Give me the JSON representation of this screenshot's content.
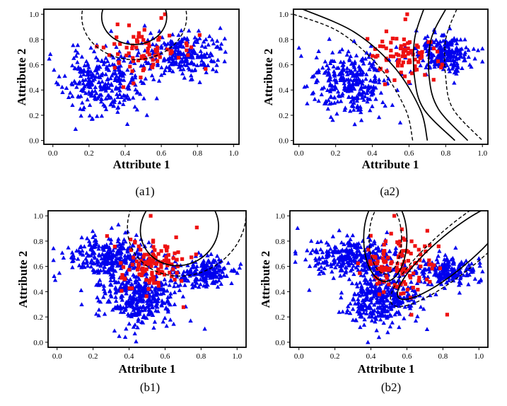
{
  "chart_data": [
    {
      "type": "scatter",
      "panel": "a1",
      "caption": "(a1)",
      "xlabel": "Attribute 1",
      "ylabel": "Attribute 2",
      "xlim": [
        -0.05,
        1.03
      ],
      "ylim": [
        -0.03,
        1.04
      ],
      "xticks": [
        "0.0",
        "0.2",
        "0.4",
        "0.6",
        "0.8",
        "1.0"
      ],
      "yticks": [
        "0.0",
        "0.2",
        "0.4",
        "0.6",
        "0.8",
        "1.0"
      ],
      "xtick_values": [
        0,
        0.2,
        0.4,
        0.6,
        0.8,
        1.0
      ],
      "ytick_values": [
        0,
        0.2,
        0.4,
        0.6,
        0.8,
        1.0
      ],
      "series": [
        {
          "name": "class-blue-triangles",
          "marker": "triangle",
          "color": "#0000ee",
          "clusters": [
            {
              "cx": 0.28,
              "cy": 0.46,
              "sx": 0.11,
              "sy": 0.13,
              "n": 300,
              "seed": 11
            },
            {
              "cx": 0.72,
              "cy": 0.68,
              "sx": 0.1,
              "sy": 0.08,
              "n": 230,
              "seed": 12
            }
          ]
        },
        {
          "name": "class-red-squares",
          "marker": "square",
          "color": "#ee1111",
          "clusters": [
            {
              "cx": 0.46,
              "cy": 0.7,
              "sx": 0.15,
              "sy": 0.1,
              "n": 75,
              "seed": 13
            }
          ],
          "points": [
            [
              0.62,
              1.0
            ],
            [
              0.6,
              0.97
            ]
          ]
        }
      ],
      "boundaries": [
        {
          "kind": "ellipse",
          "style": "solid",
          "cx": 0.45,
          "cy": 0.98,
          "rx": 0.18,
          "ry": 0.22
        },
        {
          "kind": "ellipse",
          "style": "dashed",
          "cx": 0.45,
          "cy": 0.98,
          "rx": 0.29,
          "ry": 0.34
        }
      ]
    },
    {
      "type": "scatter",
      "panel": "a2",
      "caption": "(a2)",
      "xlabel": "Attribute 1",
      "ylabel": "Attribute 2",
      "xlim": [
        -0.03,
        1.03
      ],
      "ylim": [
        -0.03,
        1.04
      ],
      "xticks": [
        "0.0",
        "0.2",
        "0.4",
        "0.6",
        "0.8",
        "1.0"
      ],
      "yticks": [
        "0.0",
        "0.2",
        "0.4",
        "0.6",
        "0.8",
        "1.0"
      ],
      "xtick_values": [
        0,
        0.2,
        0.4,
        0.6,
        0.8,
        1.0
      ],
      "ytick_values": [
        0,
        0.2,
        0.4,
        0.6,
        0.8,
        1.0
      ],
      "series": [
        {
          "name": "class-blue-triangles",
          "marker": "triangle",
          "color": "#0000ee",
          "clusters": [
            {
              "cx": 0.28,
              "cy": 0.46,
              "sx": 0.11,
              "sy": 0.13,
              "n": 300,
              "seed": 21
            },
            {
              "cx": 0.78,
              "cy": 0.69,
              "sx": 0.08,
              "sy": 0.07,
              "n": 230,
              "seed": 22
            }
          ]
        },
        {
          "name": "class-red-squares",
          "marker": "square",
          "color": "#ee1111",
          "clusters": [
            {
              "cx": 0.56,
              "cy": 0.66,
              "sx": 0.1,
              "sy": 0.1,
              "n": 75,
              "seed": 23
            }
          ],
          "points": [
            [
              0.59,
              1.0
            ],
            [
              0.58,
              0.96
            ]
          ]
        }
      ],
      "boundaries": [
        {
          "kind": "curve",
          "style": "solid",
          "points": [
            [
              0.02,
              1.04
            ],
            [
              0.3,
              0.86
            ],
            [
              0.52,
              0.58
            ],
            [
              0.66,
              0.25
            ],
            [
              0.7,
              0.0
            ]
          ]
        },
        {
          "kind": "curve",
          "style": "dashed",
          "points": [
            [
              -0.03,
              1.0
            ],
            [
              0.22,
              0.86
            ],
            [
              0.44,
              0.58
            ],
            [
              0.58,
              0.25
            ],
            [
              0.62,
              0.0
            ]
          ]
        },
        {
          "kind": "curve",
          "style": "solid",
          "points": [
            [
              0.68,
              1.04
            ],
            [
              0.63,
              0.8
            ],
            [
              0.63,
              0.5
            ],
            [
              0.68,
              0.25
            ],
            [
              0.85,
              0.0
            ]
          ]
        },
        {
          "kind": "curve",
          "style": "solid",
          "points": [
            [
              0.8,
              1.04
            ],
            [
              0.72,
              0.8
            ],
            [
              0.71,
              0.5
            ],
            [
              0.76,
              0.25
            ],
            [
              0.92,
              0.0
            ]
          ]
        },
        {
          "kind": "curve",
          "style": "dashed",
          "points": [
            [
              0.86,
              1.04
            ],
            [
              0.8,
              0.8
            ],
            [
              0.8,
              0.5
            ],
            [
              0.84,
              0.25
            ],
            [
              1.0,
              0.0
            ]
          ]
        }
      ]
    },
    {
      "type": "scatter",
      "panel": "b1",
      "caption": "(b1)",
      "xlabel": "Attribute 1",
      "ylabel": "Attribute 2",
      "xlim": [
        -0.05,
        1.05
      ],
      "ylim": [
        -0.04,
        1.04
      ],
      "xticks": [
        "0.0",
        "0.2",
        "0.4",
        "0.6",
        "0.8",
        "1.0"
      ],
      "yticks": [
        "0.0",
        "0.2",
        "0.4",
        "0.6",
        "0.8",
        "1.0"
      ],
      "xtick_values": [
        0,
        0.2,
        0.4,
        0.6,
        0.8,
        1.0
      ],
      "ytick_values": [
        0,
        0.2,
        0.4,
        0.6,
        0.8,
        1.0
      ],
      "series": [
        {
          "name": "class-blue-triangles",
          "marker": "triangle",
          "color": "#0000ee",
          "clusters": [
            {
              "cx": 0.3,
              "cy": 0.68,
              "sx": 0.12,
              "sy": 0.08,
              "n": 300,
              "seed": 31
            },
            {
              "cx": 0.45,
              "cy": 0.36,
              "sx": 0.1,
              "sy": 0.11,
              "n": 380,
              "seed": 32
            },
            {
              "cx": 0.82,
              "cy": 0.55,
              "sx": 0.08,
              "sy": 0.06,
              "n": 200,
              "seed": 33
            }
          ]
        },
        {
          "name": "class-red-squares",
          "marker": "square",
          "color": "#ee1111",
          "clusters": [
            {
              "cx": 0.52,
              "cy": 0.62,
              "sx": 0.1,
              "sy": 0.12,
              "n": 120,
              "seed": 34
            }
          ],
          "points": [
            [
              0.52,
              1.0
            ]
          ]
        }
      ],
      "boundaries": [
        {
          "kind": "ellipse",
          "style": "solid",
          "cx": 0.68,
          "cy": 0.9,
          "rx": 0.22,
          "ry": 0.29,
          "rot": -25
        },
        {
          "kind": "ellipse",
          "style": "dashed",
          "cx": 0.72,
          "cy": 0.96,
          "rx": 0.34,
          "ry": 0.42,
          "rot": -30
        }
      ]
    },
    {
      "type": "scatter",
      "panel": "b2",
      "caption": "(b2)",
      "xlabel": "Attribute 1",
      "ylabel": "Attribute 2",
      "xlim": [
        -0.05,
        1.05
      ],
      "ylim": [
        -0.04,
        1.04
      ],
      "xticks": [
        "0.0",
        "0.2",
        "0.4",
        "0.6",
        "0.8",
        "1.0"
      ],
      "yticks": [
        "0.0",
        "0.2",
        "0.4",
        "0.6",
        "0.8",
        "1.0"
      ],
      "xtick_values": [
        0,
        0.2,
        0.4,
        0.6,
        0.8,
        1.0
      ],
      "ytick_values": [
        0,
        0.2,
        0.4,
        0.6,
        0.8,
        1.0
      ],
      "series": [
        {
          "name": "class-blue-triangles",
          "marker": "triangle",
          "color": "#0000ee",
          "clusters": [
            {
              "cx": 0.3,
              "cy": 0.68,
              "sx": 0.12,
              "sy": 0.08,
              "n": 300,
              "seed": 41
            },
            {
              "cx": 0.45,
              "cy": 0.36,
              "sx": 0.1,
              "sy": 0.11,
              "n": 380,
              "seed": 42
            },
            {
              "cx": 0.82,
              "cy": 0.55,
              "sx": 0.08,
              "sy": 0.06,
              "n": 200,
              "seed": 43
            }
          ]
        },
        {
          "name": "class-red-squares",
          "marker": "square",
          "color": "#ee1111",
          "clusters": [
            {
              "cx": 0.54,
              "cy": 0.6,
              "sx": 0.11,
              "sy": 0.12,
              "n": 120,
              "seed": 44
            }
          ],
          "points": [
            [
              0.53,
              1.0
            ]
          ]
        }
      ],
      "boundaries": [
        {
          "kind": "ellipse",
          "style": "solid",
          "cx": 0.48,
          "cy": 0.82,
          "rx": 0.12,
          "ry": 0.34
        },
        {
          "kind": "ellipse",
          "style": "dashed",
          "cx": 0.48,
          "cy": 0.82,
          "rx": 0.09,
          "ry": 0.28
        },
        {
          "kind": "ellipse",
          "style": "solid",
          "cx": 0.86,
          "cy": 0.72,
          "rx": 0.4,
          "ry": 0.14,
          "rot": -40
        },
        {
          "kind": "ellipse",
          "style": "dashed",
          "cx": 0.9,
          "cy": 0.76,
          "rx": 0.5,
          "ry": 0.18,
          "rot": -40
        }
      ]
    }
  ]
}
